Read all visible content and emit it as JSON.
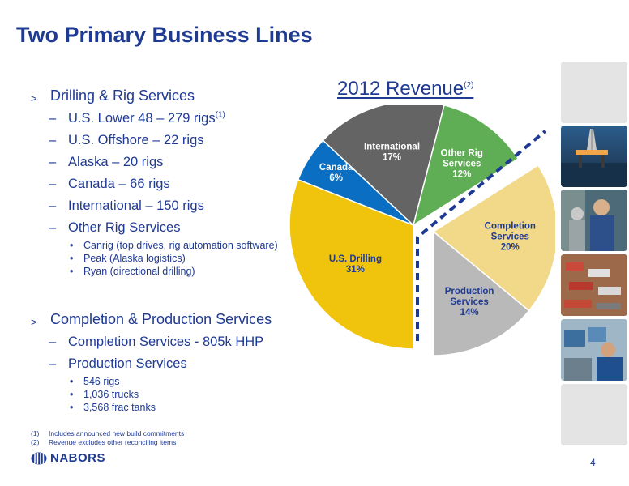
{
  "slide": {
    "title": "Two Primary Business Lines",
    "page_number": "4"
  },
  "bullets": {
    "drilling": {
      "marker": ">",
      "label": "Drilling & Rig Services",
      "items": [
        {
          "text": "U.S. Lower 48 – 279 rigs",
          "sup": "(1)"
        },
        {
          "text": "U.S. Offshore – 22 rigs",
          "sup": ""
        },
        {
          "text": "Alaska – 20 rigs",
          "sup": ""
        },
        {
          "text": "Canada – 66 rigs",
          "sup": ""
        },
        {
          "text": "International – 150 rigs",
          "sup": ""
        },
        {
          "text": "Other Rig Services",
          "sup": ""
        }
      ],
      "sub_items": [
        "Canrig (top drives, rig automation software)",
        "Peak (Alaska logistics)",
        "Ryan (directional drilling)"
      ]
    },
    "completion": {
      "marker": ">",
      "label": "Completion & Production Services",
      "items": [
        "Completion Services - 805k HHP",
        "Production Services"
      ],
      "sub_items": [
        "546 rigs",
        "1,036 trucks",
        "3,568 frac tanks"
      ]
    },
    "dash": "–",
    "dot": "•"
  },
  "chart_data": {
    "type": "pie",
    "title": "2012 Revenue",
    "title_sup": "(2)",
    "slices": [
      {
        "label": "U.S. Drilling",
        "value": 31,
        "pct": "31%",
        "color": "#f0c30d"
      },
      {
        "label": "Canada",
        "value": 6,
        "pct": "6%",
        "color": "#0a6fc2"
      },
      {
        "label": "International",
        "value": 17,
        "pct": "17%",
        "color": "#646464"
      },
      {
        "label": "Other Rig Services",
        "value": 12,
        "pct": "12%",
        "color": "#5fad55"
      },
      {
        "label": "Completion Services",
        "value": 20,
        "pct": "20%",
        "color": "#f2d98a"
      },
      {
        "label": "Production Services",
        "value": 14,
        "pct": "14%",
        "color": "#b9b9b9"
      }
    ],
    "divider_color": "#1f3a93"
  },
  "footnotes": [
    {
      "num": "(1)",
      "text": "Includes announced new build commitments"
    },
    {
      "num": "(2)",
      "text": "Revenue excludes other reconciling items"
    }
  ],
  "logo": {
    "text": "NABORS",
    "color": "#1f3a93"
  }
}
